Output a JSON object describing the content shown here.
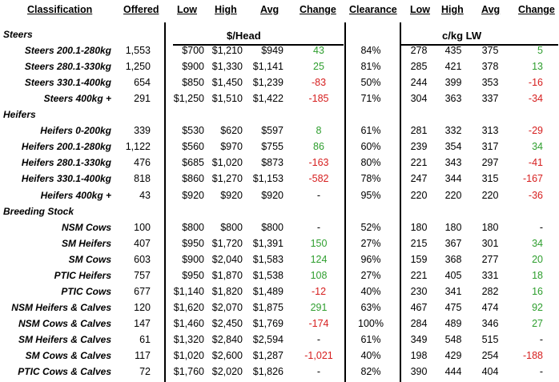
{
  "headers": {
    "classification": "Classification",
    "offered": "Offered",
    "low": "Low",
    "high": "High",
    "avg": "Avg",
    "change": "Change",
    "clearance": "Clearance",
    "low2": "Low",
    "high2": "High",
    "avg2": "Avg",
    "change2": "Change"
  },
  "units": {
    "head": "$/Head",
    "ckg": "c/kg LW"
  },
  "rows": [
    {
      "type": "group",
      "label": "Steers"
    },
    {
      "type": "row",
      "cls": "Steers 200.1-280kg",
      "offered": "1,553",
      "low": "$700",
      "high": "$1,210",
      "avg": "$949",
      "change": "43",
      "clearance": "84%",
      "low2": "278",
      "high2": "435",
      "avg2": "375",
      "change2": "5"
    },
    {
      "type": "row",
      "cls": "Steers 280.1-330kg",
      "offered": "1,250",
      "low": "$900",
      "high": "$1,330",
      "avg": "$1,141",
      "change": "25",
      "clearance": "81%",
      "low2": "285",
      "high2": "421",
      "avg2": "378",
      "change2": "13"
    },
    {
      "type": "row",
      "cls": "Steers 330.1-400kg",
      "offered": "654",
      "low": "$850",
      "high": "$1,450",
      "avg": "$1,239",
      "change": "-83",
      "clearance": "50%",
      "low2": "244",
      "high2": "399",
      "avg2": "353",
      "change2": "-16"
    },
    {
      "type": "row",
      "cls": "Steers 400kg +",
      "offered": "291",
      "low": "$1,250",
      "high": "$1,510",
      "avg": "$1,422",
      "change": "-185",
      "clearance": "71%",
      "low2": "304",
      "high2": "363",
      "avg2": "337",
      "change2": "-34"
    },
    {
      "type": "group",
      "label": "Heifers"
    },
    {
      "type": "row",
      "cls": "Heifers 0-200kg",
      "offered": "339",
      "low": "$530",
      "high": "$620",
      "avg": "$597",
      "change": "8",
      "clearance": "61%",
      "low2": "281",
      "high2": "332",
      "avg2": "313",
      "change2": "-29"
    },
    {
      "type": "row",
      "cls": "Heifers 200.1-280kg",
      "offered": "1,122",
      "low": "$560",
      "high": "$970",
      "avg": "$755",
      "change": "86",
      "clearance": "60%",
      "low2": "239",
      "high2": "354",
      "avg2": "317",
      "change2": "34"
    },
    {
      "type": "row",
      "cls": "Heifers 280.1-330kg",
      "offered": "476",
      "low": "$685",
      "high": "$1,020",
      "avg": "$873",
      "change": "-163",
      "clearance": "80%",
      "low2": "221",
      "high2": "343",
      "avg2": "297",
      "change2": "-41"
    },
    {
      "type": "row",
      "cls": "Heifers 330.1-400kg",
      "offered": "818",
      "low": "$860",
      "high": "$1,270",
      "avg": "$1,153",
      "change": "-582",
      "clearance": "78%",
      "low2": "247",
      "high2": "344",
      "avg2": "315",
      "change2": "-167"
    },
    {
      "type": "row",
      "cls": "Heifers 400kg +",
      "offered": "43",
      "low": "$920",
      "high": "$920",
      "avg": "$920",
      "change": "-",
      "clearance": "95%",
      "low2": "220",
      "high2": "220",
      "avg2": "220",
      "change2": "-36"
    },
    {
      "type": "group",
      "label": "Breeding Stock"
    },
    {
      "type": "row",
      "cls": "NSM Cows",
      "offered": "100",
      "low": "$800",
      "high": "$800",
      "avg": "$800",
      "change": "-",
      "clearance": "52%",
      "low2": "180",
      "high2": "180",
      "avg2": "180",
      "change2": "-"
    },
    {
      "type": "row",
      "cls": "SM Heifers",
      "offered": "407",
      "low": "$950",
      "high": "$1,720",
      "avg": "$1,391",
      "change": "150",
      "clearance": "27%",
      "low2": "215",
      "high2": "367",
      "avg2": "301",
      "change2": "34"
    },
    {
      "type": "row",
      "cls": "SM Cows",
      "offered": "603",
      "low": "$900",
      "high": "$2,040",
      "avg": "$1,583",
      "change": "124",
      "clearance": "96%",
      "low2": "159",
      "high2": "368",
      "avg2": "277",
      "change2": "20"
    },
    {
      "type": "row",
      "cls": "PTIC Heifers",
      "offered": "757",
      "low": "$950",
      "high": "$1,870",
      "avg": "$1,538",
      "change": "108",
      "clearance": "27%",
      "low2": "221",
      "high2": "405",
      "avg2": "331",
      "change2": "18"
    },
    {
      "type": "row",
      "cls": "PTIC Cows",
      "offered": "677",
      "low": "$1,140",
      "high": "$1,820",
      "avg": "$1,489",
      "change": "-12",
      "clearance": "40%",
      "low2": "230",
      "high2": "341",
      "avg2": "282",
      "change2": "16"
    },
    {
      "type": "row",
      "cls": "NSM Heifers & Calves",
      "offered": "120",
      "low": "$1,620",
      "high": "$2,070",
      "avg": "$1,875",
      "change": "291",
      "clearance": "63%",
      "low2": "467",
      "high2": "475",
      "avg2": "474",
      "change2": "92"
    },
    {
      "type": "row",
      "cls": "NSM Cows & Calves",
      "offered": "147",
      "low": "$1,460",
      "high": "$2,450",
      "avg": "$1,769",
      "change": "-174",
      "clearance": "100%",
      "low2": "284",
      "high2": "489",
      "avg2": "346",
      "change2": "27"
    },
    {
      "type": "row",
      "cls": "SM Heifers & Calves",
      "offered": "61",
      "low": "$1,320",
      "high": "$2,840",
      "avg": "$2,594",
      "change": "-",
      "clearance": "61%",
      "low2": "349",
      "high2": "548",
      "avg2": "515",
      "change2": "-"
    },
    {
      "type": "row",
      "cls": "SM Cows & Calves",
      "offered": "117",
      "low": "$1,020",
      "high": "$2,600",
      "avg": "$1,287",
      "change": "-1,021",
      "clearance": "40%",
      "low2": "198",
      "high2": "429",
      "avg2": "254",
      "change2": "-188"
    },
    {
      "type": "row",
      "cls": "PTIC Cows & Calves",
      "offered": "72",
      "low": "$1,760",
      "high": "$2,020",
      "avg": "$1,826",
      "change": "-",
      "clearance": "82%",
      "low2": "390",
      "high2": "444",
      "avg2": "404",
      "change2": "-"
    }
  ]
}
